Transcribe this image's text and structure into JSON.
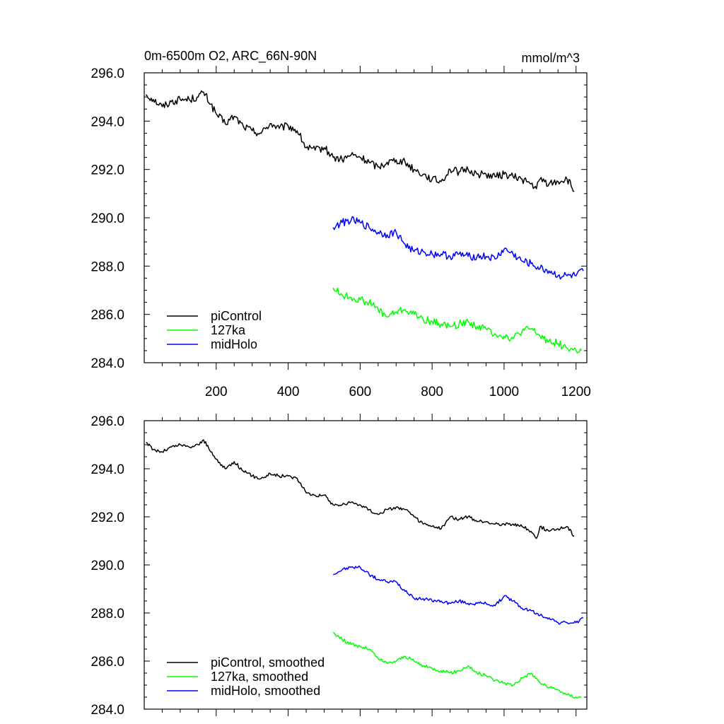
{
  "chart_data": [
    {
      "type": "line",
      "title": "0m-6500m O2, ARC_66N-90N",
      "units": "mmol/m^3",
      "xlim": [
        0,
        1230
      ],
      "ylim": [
        284.0,
        296.0
      ],
      "x_ticks": [
        200,
        400,
        600,
        800,
        1000,
        1200
      ],
      "x_tick_labels": [
        "200",
        "400",
        "600",
        "800",
        "1000",
        "1200"
      ],
      "y_ticks": [
        284.0,
        286.0,
        288.0,
        290.0,
        292.0,
        294.0,
        296.0
      ],
      "y_tick_labels": [
        "284.0",
        "286.0",
        "288.0",
        "290.0",
        "292.0",
        "294.0",
        "296.0"
      ],
      "legend_position": "bottom-left",
      "series": [
        {
          "name": "piControl",
          "color": "#000000",
          "x": [
            5,
            25,
            50,
            75,
            100,
            125,
            150,
            165,
            185,
            200,
            225,
            250,
            275,
            300,
            325,
            350,
            375,
            400,
            425,
            450,
            475,
            500,
            525,
            550,
            575,
            600,
            625,
            650,
            675,
            700,
            725,
            750,
            775,
            800,
            825,
            850,
            875,
            900,
            925,
            950,
            975,
            1000,
            1025,
            1050,
            1075,
            1090,
            1100,
            1125,
            1150,
            1175,
            1195
          ],
          "y": [
            295.1,
            294.9,
            294.6,
            294.8,
            294.9,
            294.9,
            295.0,
            295.2,
            294.7,
            294.3,
            293.9,
            294.2,
            293.8,
            293.6,
            293.5,
            293.9,
            293.7,
            293.8,
            293.6,
            292.9,
            292.8,
            292.9,
            292.5,
            292.4,
            292.6,
            292.5,
            292.3,
            292.1,
            292.3,
            292.4,
            292.3,
            292.0,
            291.8,
            291.6,
            291.5,
            292.0,
            291.9,
            292.0,
            291.8,
            291.8,
            291.7,
            291.8,
            291.7,
            291.6,
            291.4,
            291.2,
            291.6,
            291.4,
            291.5,
            291.6,
            291.1
          ]
        },
        {
          "name": "127ka",
          "color": "#00ff00",
          "x": [
            525,
            550,
            575,
            600,
            625,
            650,
            675,
            700,
            725,
            750,
            775,
            800,
            825,
            850,
            875,
            900,
            925,
            950,
            975,
            1000,
            1025,
            1050,
            1075,
            1100,
            1125,
            1150,
            1175,
            1200,
            1215
          ],
          "y": [
            287.1,
            286.8,
            286.7,
            286.6,
            286.5,
            286.2,
            285.9,
            286.1,
            286.2,
            286.0,
            285.8,
            285.7,
            285.6,
            285.5,
            285.6,
            285.7,
            285.5,
            285.4,
            285.2,
            285.1,
            285.0,
            285.3,
            285.4,
            285.1,
            284.9,
            284.8,
            284.6,
            284.5,
            284.5
          ]
        },
        {
          "name": "midHolo",
          "color": "#0000ff",
          "x": [
            525,
            550,
            575,
            600,
            625,
            650,
            675,
            700,
            725,
            750,
            775,
            800,
            825,
            850,
            875,
            900,
            925,
            950,
            975,
            1000,
            1025,
            1050,
            1075,
            1100,
            1125,
            1150,
            1175,
            1200,
            1220
          ],
          "y": [
            289.6,
            289.8,
            289.9,
            289.8,
            289.6,
            289.4,
            289.3,
            289.4,
            288.9,
            288.6,
            288.6,
            288.5,
            288.5,
            288.4,
            288.5,
            288.4,
            288.4,
            288.4,
            288.3,
            288.7,
            288.5,
            288.2,
            288.1,
            287.9,
            287.8,
            287.6,
            287.6,
            287.6,
            287.8
          ]
        }
      ]
    },
    {
      "type": "line",
      "title": "",
      "units": "",
      "xlim": [
        0,
        1230
      ],
      "ylim": [
        284.0,
        296.0
      ],
      "x_ticks": [
        200,
        400,
        600,
        800,
        1000,
        1200
      ],
      "y_ticks": [
        284.0,
        286.0,
        288.0,
        290.0,
        292.0,
        294.0,
        296.0
      ],
      "y_tick_labels": [
        "284.0",
        "286.0",
        "288.0",
        "290.0",
        "292.0",
        "294.0",
        "296.0"
      ],
      "legend_position": "bottom-left",
      "series": [
        {
          "name": "piControl, smoothed",
          "color": "#000000",
          "x": [
            5,
            25,
            50,
            75,
            100,
            125,
            150,
            165,
            185,
            200,
            225,
            250,
            275,
            300,
            325,
            350,
            375,
            400,
            425,
            450,
            475,
            500,
            525,
            550,
            575,
            600,
            625,
            650,
            675,
            700,
            725,
            750,
            775,
            800,
            825,
            850,
            875,
            900,
            925,
            950,
            975,
            1000,
            1025,
            1050,
            1075,
            1090,
            1100,
            1125,
            1150,
            1175,
            1195
          ],
          "y": [
            295.1,
            294.8,
            294.7,
            294.9,
            295.0,
            294.9,
            295.0,
            295.2,
            294.7,
            294.4,
            294.0,
            294.3,
            293.9,
            293.7,
            293.6,
            293.8,
            293.7,
            293.7,
            293.6,
            293.0,
            292.9,
            292.9,
            292.5,
            292.5,
            292.6,
            292.5,
            292.3,
            292.1,
            292.3,
            292.4,
            292.3,
            292.0,
            291.7,
            291.6,
            291.5,
            292.0,
            291.9,
            292.0,
            291.8,
            291.8,
            291.7,
            291.7,
            291.7,
            291.6,
            291.4,
            291.1,
            291.6,
            291.4,
            291.5,
            291.6,
            291.2
          ]
        },
        {
          "name": "127ka, smoothed",
          "color": "#00ff00",
          "x": [
            525,
            550,
            575,
            600,
            625,
            650,
            675,
            700,
            725,
            750,
            775,
            800,
            825,
            850,
            875,
            900,
            925,
            950,
            975,
            1000,
            1025,
            1050,
            1075,
            1100,
            1125,
            1150,
            1175,
            1200,
            1215
          ],
          "y": [
            287.2,
            286.9,
            286.7,
            286.6,
            286.5,
            286.1,
            285.9,
            286.0,
            286.2,
            286.0,
            285.8,
            285.7,
            285.6,
            285.5,
            285.6,
            285.8,
            285.5,
            285.4,
            285.2,
            285.1,
            285.0,
            285.3,
            285.5,
            285.1,
            284.9,
            284.8,
            284.6,
            284.5,
            284.5
          ]
        },
        {
          "name": "midHolo, smoothed",
          "color": "#0000ff",
          "x": [
            525,
            550,
            575,
            600,
            625,
            650,
            675,
            700,
            725,
            750,
            775,
            800,
            825,
            850,
            875,
            900,
            925,
            950,
            975,
            1000,
            1025,
            1050,
            1075,
            1100,
            1125,
            1150,
            1175,
            1200,
            1220
          ],
          "y": [
            289.6,
            289.8,
            289.9,
            289.9,
            289.6,
            289.4,
            289.3,
            289.3,
            288.9,
            288.6,
            288.6,
            288.5,
            288.5,
            288.4,
            288.5,
            288.4,
            288.4,
            288.4,
            288.3,
            288.7,
            288.5,
            288.2,
            288.1,
            287.9,
            287.8,
            287.6,
            287.6,
            287.6,
            287.8
          ]
        }
      ]
    }
  ]
}
